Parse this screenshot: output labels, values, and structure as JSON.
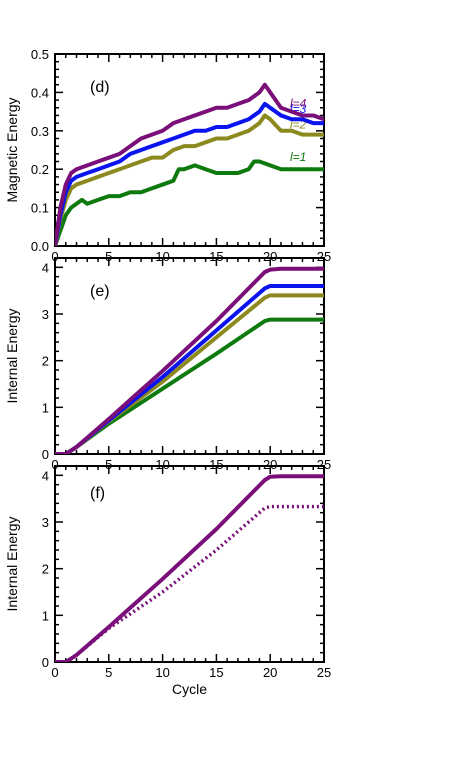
{
  "chart_data": [
    {
      "type": "line",
      "panel_label": "(d)",
      "title": "",
      "xlabel": "",
      "ylabel": "Magnetic Energy",
      "xlim": [
        0,
        25
      ],
      "ylim": [
        0,
        0.5
      ],
      "xticks": [
        "0",
        "5",
        "10",
        "15",
        "20",
        "25"
      ],
      "yticks": [
        "0.0",
        "0.1",
        "0.2",
        "0.3",
        "0.4",
        "0.5"
      ],
      "grid": false,
      "legend": "inline labels at right",
      "series": [
        {
          "name": "l=1",
          "color": "#0e7a0e",
          "style": "solid",
          "x": [
            0,
            0.5,
            1,
            1.5,
            2,
            2.5,
            3,
            4,
            5,
            6,
            7,
            8,
            9,
            10,
            11,
            11.5,
            12,
            13,
            14,
            15,
            16,
            17,
            18,
            18.5,
            19,
            20,
            21,
            22,
            23,
            24,
            25
          ],
          "y": [
            0,
            0.04,
            0.08,
            0.1,
            0.11,
            0.12,
            0.11,
            0.12,
            0.13,
            0.13,
            0.14,
            0.14,
            0.15,
            0.16,
            0.17,
            0.2,
            0.2,
            0.21,
            0.2,
            0.19,
            0.19,
            0.19,
            0.2,
            0.22,
            0.22,
            0.21,
            0.2,
            0.2,
            0.2,
            0.2,
            0.2
          ]
        },
        {
          "name": "l=2",
          "color": "#8c8a1f",
          "style": "solid",
          "x": [
            0,
            0.5,
            1,
            1.5,
            2,
            3,
            4,
            5,
            6,
            7,
            8,
            9,
            10,
            11,
            12,
            13,
            14,
            15,
            16,
            17,
            18,
            19,
            19.5,
            20,
            21,
            22,
            23,
            24,
            25
          ],
          "y": [
            0,
            0.07,
            0.12,
            0.15,
            0.16,
            0.17,
            0.18,
            0.19,
            0.2,
            0.21,
            0.22,
            0.23,
            0.23,
            0.25,
            0.26,
            0.26,
            0.27,
            0.28,
            0.28,
            0.29,
            0.3,
            0.32,
            0.34,
            0.33,
            0.3,
            0.3,
            0.29,
            0.29,
            0.29
          ]
        },
        {
          "name": "l=3",
          "color": "#0a14ee",
          "style": "solid",
          "x": [
            0,
            0.5,
            1,
            1.5,
            2,
            3,
            4,
            5,
            6,
            7,
            8,
            9,
            10,
            11,
            12,
            13,
            14,
            15,
            16,
            17,
            18,
            19,
            19.5,
            20,
            21,
            22,
            23,
            24,
            25
          ],
          "y": [
            0,
            0.08,
            0.14,
            0.17,
            0.18,
            0.19,
            0.2,
            0.21,
            0.22,
            0.24,
            0.25,
            0.26,
            0.27,
            0.28,
            0.29,
            0.3,
            0.3,
            0.31,
            0.31,
            0.32,
            0.33,
            0.35,
            0.37,
            0.36,
            0.34,
            0.33,
            0.33,
            0.32,
            0.32
          ]
        },
        {
          "name": "l=4",
          "color": "#7a0f7a",
          "style": "solid",
          "x": [
            0,
            0.5,
            1,
            1.5,
            2,
            3,
            4,
            5,
            6,
            7,
            8,
            9,
            10,
            11,
            12,
            13,
            14,
            15,
            16,
            17,
            18,
            19,
            19.5,
            20,
            21,
            22,
            23,
            24,
            25
          ],
          "y": [
            0,
            0.1,
            0.16,
            0.19,
            0.2,
            0.21,
            0.22,
            0.23,
            0.24,
            0.26,
            0.28,
            0.29,
            0.3,
            0.32,
            0.33,
            0.34,
            0.35,
            0.36,
            0.36,
            0.37,
            0.38,
            0.4,
            0.42,
            0.4,
            0.36,
            0.35,
            0.34,
            0.34,
            0.33
          ]
        }
      ]
    },
    {
      "type": "line",
      "panel_label": "(e)",
      "title": "",
      "xlabel": "",
      "ylabel": "Internal Energy",
      "xlim": [
        0,
        25
      ],
      "ylim": [
        0,
        4.2
      ],
      "xticks": [
        "0",
        "5",
        "10",
        "15",
        "20",
        "25"
      ],
      "yticks": [
        "0",
        "1",
        "2",
        "3",
        "4"
      ],
      "grid": false,
      "legend": "none",
      "series": [
        {
          "name": "",
          "color": "#0e7a0e",
          "style": "solid",
          "x": [
            0,
            1,
            2,
            5,
            10,
            15,
            19.5,
            20,
            21,
            25
          ],
          "y": [
            0,
            0,
            0.15,
            0.65,
            1.4,
            2.15,
            2.85,
            2.88,
            2.88,
            2.88
          ]
        },
        {
          "name": "",
          "color": "#8c8a1f",
          "style": "solid",
          "x": [
            0,
            1,
            2,
            5,
            10,
            15,
            19.5,
            20,
            21,
            25
          ],
          "y": [
            0,
            0,
            0.15,
            0.7,
            1.55,
            2.5,
            3.35,
            3.4,
            3.4,
            3.4
          ]
        },
        {
          "name": "",
          "color": "#0a14ee",
          "style": "solid",
          "x": [
            0,
            1,
            2,
            5,
            10,
            15,
            19.5,
            20,
            21,
            25
          ],
          "y": [
            0,
            0,
            0.15,
            0.72,
            1.65,
            2.65,
            3.55,
            3.6,
            3.6,
            3.6
          ]
        },
        {
          "name": "",
          "color": "#7a0f7a",
          "style": "solid",
          "x": [
            0,
            1,
            2,
            5,
            10,
            15,
            19.5,
            20,
            21,
            25
          ],
          "y": [
            0,
            0,
            0.15,
            0.75,
            1.78,
            2.85,
            3.9,
            3.95,
            3.97,
            3.97
          ]
        }
      ]
    },
    {
      "type": "line",
      "panel_label": "(f)",
      "title": "",
      "xlabel": "Cycle",
      "ylabel": "Internal Energy",
      "xlim": [
        0,
        25
      ],
      "ylim": [
        0,
        4.2
      ],
      "xticks": [
        "0",
        "5",
        "10",
        "15",
        "20",
        "25"
      ],
      "yticks": [
        "0",
        "1",
        "2",
        "3",
        "4"
      ],
      "grid": false,
      "legend": "none",
      "series": [
        {
          "name": "",
          "color": "#7a0f7a",
          "style": "solid",
          "x": [
            0,
            1,
            2,
            5,
            10,
            15,
            19.5,
            20,
            21,
            25
          ],
          "y": [
            0,
            0,
            0.15,
            0.75,
            1.78,
            2.85,
            3.9,
            3.97,
            3.98,
            3.98
          ]
        },
        {
          "name": "",
          "color": "#7a0f7a",
          "style": "dotted",
          "x": [
            0,
            1,
            2,
            5,
            10,
            15,
            19.5,
            20,
            21,
            25
          ],
          "y": [
            0,
            0,
            0.15,
            0.72,
            1.5,
            2.4,
            3.3,
            3.33,
            3.33,
            3.33
          ]
        }
      ]
    }
  ]
}
